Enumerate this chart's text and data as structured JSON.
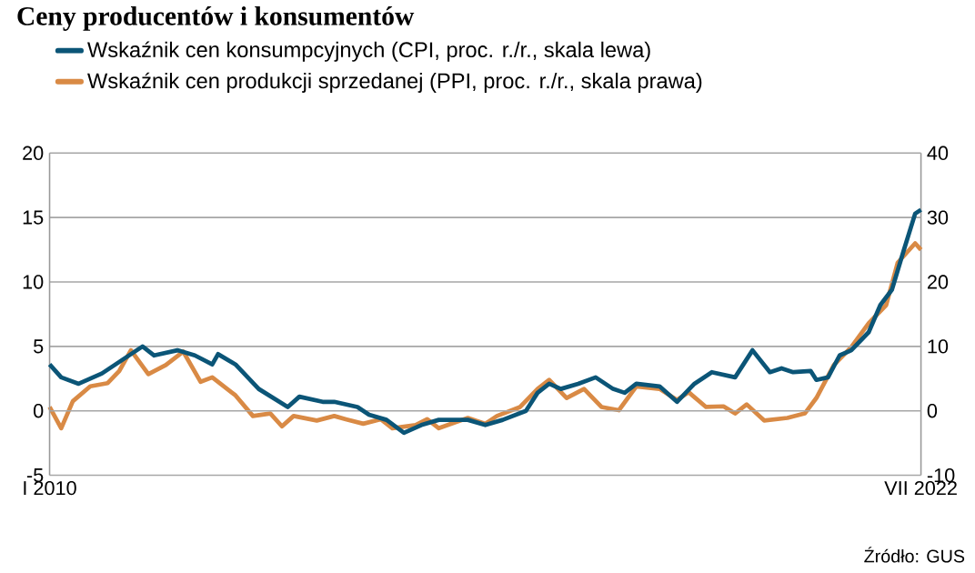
{
  "chart_data": {
    "type": "line",
    "title": "Ceny producentów i konsumentów",
    "annotations": [
      "Źródło: GUS"
    ],
    "xlim": [
      "2010-01",
      "2022-07"
    ],
    "xticks": [
      {
        "value": "2010-01",
        "label": "I 2010"
      },
      {
        "value": "2022-07",
        "label": "VII 2022"
      }
    ],
    "ylim": [
      -5,
      20
    ],
    "yticks": [
      -5,
      0,
      5,
      10,
      15,
      20
    ],
    "y2lim": [
      -10,
      40
    ],
    "y2ticks": [
      -10,
      0,
      10,
      20,
      30,
      40
    ],
    "grid": "y",
    "legend": "top left",
    "series": [
      {
        "name": "Wskaźnik cen konsumpcyjnych (CPI, proc. r./r., skala lewa)",
        "color": "#0b5577",
        "x": [
          "2010-01",
          "2010-03",
          "2010-06",
          "2010-10",
          "2011-01",
          "2011-05",
          "2011-07",
          "2011-11",
          "2012-02",
          "2012-05",
          "2012-06",
          "2012-09",
          "2013-01",
          "2013-06",
          "2013-08",
          "2013-12",
          "2014-02",
          "2014-06",
          "2014-08",
          "2014-11",
          "2015-02",
          "2015-05",
          "2015-08",
          "2016-01",
          "2016-04",
          "2016-07",
          "2016-11",
          "2017-01",
          "2017-03",
          "2017-05",
          "2017-08",
          "2017-11",
          "2018-02",
          "2018-04",
          "2018-06",
          "2018-10",
          "2019-01",
          "2019-04",
          "2019-07",
          "2019-11",
          "2020-02",
          "2020-05",
          "2020-07",
          "2020-09",
          "2020-12",
          "2021-01",
          "2021-03",
          "2021-05",
          "2021-07",
          "2021-10",
          "2021-12",
          "2022-02",
          "2022-04",
          "2022-06",
          "2022-07"
        ],
        "values": [
          3.6,
          2.6,
          2.1,
          2.9,
          3.8,
          5.0,
          4.3,
          4.7,
          4.3,
          3.6,
          4.4,
          3.6,
          1.7,
          0.3,
          1.1,
          0.7,
          0.7,
          0.3,
          -0.3,
          -0.7,
          -1.7,
          -1.1,
          -0.7,
          -0.7,
          -1.1,
          -0.7,
          0.0,
          1.4,
          2.1,
          1.7,
          2.1,
          2.6,
          1.7,
          1.4,
          2.1,
          1.9,
          0.7,
          2.1,
          3.0,
          2.6,
          4.7,
          3.0,
          3.3,
          3.0,
          3.1,
          2.4,
          2.6,
          4.3,
          4.7,
          6.1,
          8.2,
          9.4,
          12.4,
          15.3,
          15.6
        ]
      },
      {
        "name": "Wskaźnik cen produkcji sprzedanej (PPI, proc. r./r., skala prawa)",
        "color": "#d98a45",
        "axis": "y2",
        "x": [
          "2010-01",
          "2010-03",
          "2010-05",
          "2010-08",
          "2010-11",
          "2011-01",
          "2011-03",
          "2011-06",
          "2011-09",
          "2011-12",
          "2012-03",
          "2012-05",
          "2012-09",
          "2012-12",
          "2013-03",
          "2013-05",
          "2013-07",
          "2013-11",
          "2014-02",
          "2014-04",
          "2014-07",
          "2014-10",
          "2014-12",
          "2015-04",
          "2015-06",
          "2015-08",
          "2016-01",
          "2016-04",
          "2016-06",
          "2016-10",
          "2017-01",
          "2017-03",
          "2017-06",
          "2017-09",
          "2017-12",
          "2018-03",
          "2018-06",
          "2018-10",
          "2019-01",
          "2019-03",
          "2019-06",
          "2019-09",
          "2019-11",
          "2020-01",
          "2020-04",
          "2020-08",
          "2020-11",
          "2021-01",
          "2021-04",
          "2021-07",
          "2021-10",
          "2022-01",
          "2022-03",
          "2022-06",
          "2022-07"
        ],
        "values": [
          0.6,
          -2.7,
          1.5,
          3.8,
          4.3,
          6.2,
          9.4,
          5.7,
          7.1,
          9.2,
          4.5,
          5.2,
          2.4,
          -0.8,
          -0.4,
          -2.4,
          -0.8,
          -1.5,
          -0.8,
          -1.3,
          -2.0,
          -1.3,
          -2.7,
          -2.2,
          -1.3,
          -2.7,
          -1.1,
          -2.0,
          -0.8,
          0.6,
          3.4,
          4.8,
          2.0,
          3.4,
          0.6,
          0.1,
          3.8,
          3.4,
          1.7,
          2.9,
          0.6,
          0.7,
          -0.4,
          1.0,
          -1.5,
          -1.1,
          -0.4,
          2.0,
          7.1,
          9.9,
          13.6,
          16.4,
          23.0,
          26.0,
          25.0
        ]
      }
    ]
  }
}
